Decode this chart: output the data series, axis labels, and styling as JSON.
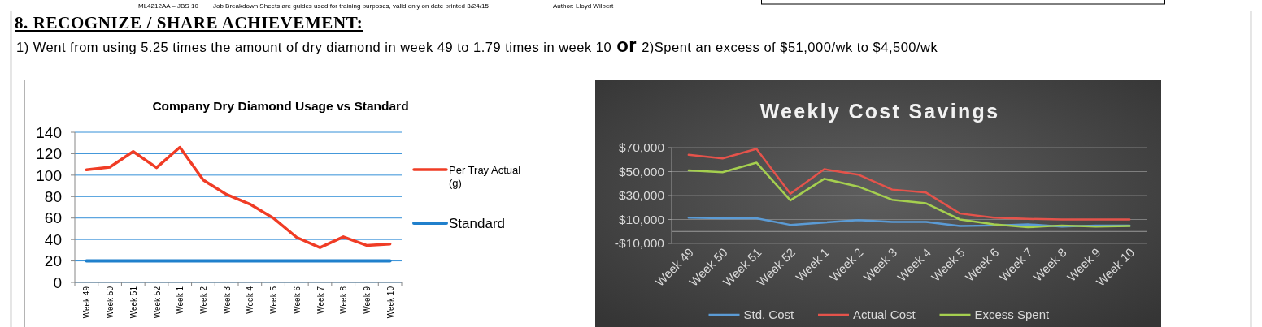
{
  "chart_data": [
    {
      "type": "other",
      "title": "8. RECOGNIZE / SHARE ACHIEVEMENT:",
      "annotations": [
        "ML4212AA – JBS 10",
        "Job Breakdown Sheets are guides used for training purposes, valid only on date printed 3/24/15",
        "Author: Lloyd Wilbert",
        "1) Went from using 5.25 times the amount of dry diamond in week 49 to 1.79 times in week 10",
        "or",
        "2)Spent an excess of $51,000/wk to $4,500/wk"
      ]
    },
    {
      "type": "line",
      "title": "Company Dry Diamond Usage vs Standard",
      "categories": [
        "Week 49",
        "Week 50",
        "Week 51",
        "Week 52",
        "Week 1",
        "Week 2",
        "Week 3",
        "Week 4",
        "Week 5",
        "Week 6",
        "Week 7",
        "Week 8",
        "Week 9",
        "Week 10"
      ],
      "series": [
        {
          "name": "Per Tray Actual (g)",
          "color": "#f03c25",
          "values": [
            105,
            107.5,
            122,
            107,
            126,
            95.5,
            82,
            73,
            60,
            42,
            32.5,
            42.5,
            34.5,
            35.8
          ]
        },
        {
          "name": "Standard",
          "color": "#2080cc",
          "values": [
            20,
            20,
            20,
            20,
            20,
            20,
            20,
            20,
            20,
            20,
            20,
            20,
            20,
            20
          ]
        }
      ],
      "ylim": [
        0,
        140
      ],
      "yticks": [
        0,
        20,
        40,
        60,
        80,
        100,
        120,
        140
      ],
      "grid": "y",
      "legend": "right"
    },
    {
      "type": "line",
      "title": "Weekly Cost Savings",
      "categories": [
        "Week 49",
        "Week 50",
        "Week 51",
        "Week 52",
        "Week 1",
        "Week 2",
        "Week 3",
        "Week 4",
        "Week 5",
        "Week 6",
        "Week 7",
        "Week 8",
        "Week 9",
        "Week 10"
      ],
      "series": [
        {
          "name": "Std. Cost",
          "color": "#5b9bd5",
          "values": [
            11500,
            11000,
            11000,
            5500,
            7500,
            9500,
            8000,
            8000,
            4500,
            5000,
            6000,
            4000,
            5000,
            5000
          ]
        },
        {
          "name": "Actual Cost",
          "color": "#e5534b",
          "values": [
            64000,
            61000,
            69000,
            31500,
            52000,
            47500,
            35000,
            32500,
            15000,
            11500,
            10500,
            10000,
            10000,
            10000
          ]
        },
        {
          "name": "Excess Spent",
          "color": "#a5cf4f",
          "values": [
            51000,
            49500,
            57500,
            26000,
            44000,
            37500,
            26500,
            23500,
            10000,
            6000,
            3500,
            5000,
            4000,
            4500
          ]
        }
      ],
      "ylim": [
        -10000,
        70000
      ],
      "yticks": [
        {
          "value": -10000,
          "label": "-$10,000"
        },
        {
          "value": 10000,
          "label": "$10,000"
        },
        {
          "value": 30000,
          "label": "$30,000"
        },
        {
          "value": 50000,
          "label": "$50,000"
        },
        {
          "value": 70000,
          "label": "$70,000"
        }
      ],
      "grid": "y",
      "legend": "bottom"
    }
  ]
}
